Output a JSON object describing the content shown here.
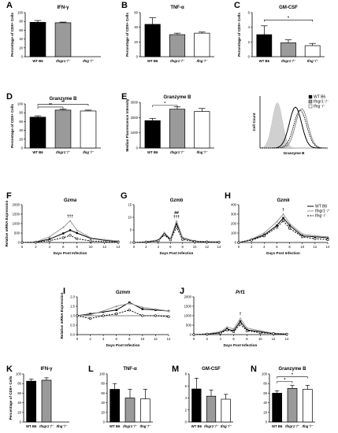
{
  "series_colors": {
    "WT B6": "#000000",
    "Ifngr1-/-": "#9a9a9a",
    "Ifng-/-": "#ffffff"
  },
  "bar_categories": [
    "WT B6",
    "Ifngr1⁻/⁻",
    "Ifng⁻/⁻"
  ],
  "chart_data": [
    {
      "panel": "A",
      "type": "bar",
      "title": "IFN-γ",
      "ylabel": "Percentage of CD8+ Cells",
      "categories": [
        "WT B6",
        "Ifngr1-/-",
        "Ifng-/-"
      ],
      "values": [
        78,
        77,
        0
      ],
      "errors": [
        4,
        1.5,
        0
      ],
      "ylim": [
        0,
        100
      ],
      "yticks": [
        "0",
        "20",
        "40",
        "60",
        "80",
        "100"
      ],
      "significance": []
    },
    {
      "panel": "B",
      "type": "bar",
      "title": "TNF-α",
      "ylabel": "Percentage of CD8+ Cells",
      "categories": [
        "WT B6",
        "Ifngr1-/-",
        "Ifng-/-"
      ],
      "values": [
        44,
        30,
        32
      ],
      "errors": [
        9,
        2,
        1.5
      ],
      "ylim": [
        0,
        60
      ],
      "yticks": [
        "0",
        "20",
        "40",
        "60"
      ],
      "significance": []
    },
    {
      "panel": "C",
      "type": "bar",
      "title": "GM-CSF",
      "ylabel": "Percentage of CD8+ Cells",
      "categories": [
        "WT B6",
        "Ifngr1-/-",
        "Ifng-/-"
      ],
      "values": [
        3.0,
        1.9,
        1.5
      ],
      "errors": [
        1.2,
        0.4,
        0.3
      ],
      "ylim": [
        0,
        6
      ],
      "yticks": [
        "0",
        "2",
        "4",
        "6"
      ],
      "significance": [
        {
          "from": 0,
          "to": 2,
          "label": "*",
          "level": 5.0
        }
      ]
    },
    {
      "panel": "D",
      "type": "bar",
      "title": "Granzyme B",
      "ylabel": "Percentage of CD8+ Cells",
      "categories": [
        "WT B6",
        "Ifngr1-/-",
        "Ifng-/-"
      ],
      "values": [
        70,
        86,
        84
      ],
      "errors": [
        3,
        2,
        2
      ],
      "ylim": [
        0,
        100
      ],
      "yticks": [
        "0",
        "20",
        "40",
        "60",
        "80",
        "100"
      ],
      "significance": [
        {
          "from": 0,
          "to": 1,
          "label": "**",
          "level": 93
        },
        {
          "from": 0,
          "to": 2,
          "label": "**",
          "level": 99
        }
      ]
    },
    {
      "panel": "E",
      "type": "bar",
      "title": "Granzyme B",
      "ylabel": "Median Fluorescence Intensity",
      "categories": [
        "WT B6",
        "Ifngr1-/-",
        "Ifng-/-"
      ],
      "values": [
        1800,
        2550,
        2400
      ],
      "errors": [
        150,
        150,
        200
      ],
      "ylim": [
        0,
        3000
      ],
      "yticks": [
        "0",
        "1000",
        "2000",
        "3000"
      ],
      "significance": [
        {
          "from": 0,
          "to": 1,
          "label": "*",
          "level": 2800
        }
      ]
    },
    {
      "panel": "E-histogram",
      "type": "line",
      "xlabel": "Granzyme B",
      "ylabel": "Cell Count",
      "legend": [
        "WT B6",
        "Ifngr1⁻/⁻",
        "Ifng⁻/⁻"
      ]
    },
    {
      "panel": "F",
      "type": "line",
      "title": "Gzma",
      "ylabel": "Relative mRNA Expression",
      "xlabel": "Days Post Infection",
      "x": [
        0,
        2,
        4,
        6,
        7,
        8,
        10,
        12,
        14
      ],
      "ylim": [
        0,
        2000
      ],
      "yticks": [
        "0",
        "500",
        "1000",
        "1500",
        "2000"
      ],
      "xticks": [
        "0",
        "2",
        "4",
        "6",
        "8",
        "10",
        "12",
        "14"
      ],
      "annotation": "†††",
      "series": [
        {
          "name": "WT B6",
          "values": [
            0,
            20,
            180,
            480,
            650,
            500,
            220,
            120,
            50
          ]
        },
        {
          "name": "Ifngr1-/-",
          "values": [
            0,
            30,
            300,
            800,
            1150,
            650,
            250,
            150,
            80
          ]
        },
        {
          "name": "Ifng-/-",
          "values": [
            0,
            15,
            100,
            250,
            380,
            200,
            80,
            40,
            20
          ]
        }
      ]
    },
    {
      "panel": "G",
      "type": "line",
      "title": "Gzmb",
      "ylabel": "",
      "xlabel": "Days Post Infection",
      "x": [
        0,
        2,
        4,
        5,
        6,
        7,
        8,
        10,
        12,
        14
      ],
      "ylim": [
        0,
        15
      ],
      "yticks": [
        "0",
        "5",
        "10",
        "15"
      ],
      "xticks": [
        "0",
        "2",
        "4",
        "6",
        "8",
        "10",
        "12",
        "14"
      ],
      "annotation": "##\n†††",
      "series": [
        {
          "name": "WT B6",
          "values": [
            0,
            0.2,
            0.8,
            3.5,
            1.2,
            7.5,
            1.8,
            0.5,
            0.3,
            0.2
          ]
        },
        {
          "name": "Ifngr1-/-",
          "values": [
            0,
            0.3,
            1.0,
            4.0,
            1.5,
            8.5,
            2.0,
            0.6,
            0.3,
            0.2
          ]
        },
        {
          "name": "Ifng-/-",
          "values": [
            0,
            0.2,
            0.7,
            3.0,
            1.0,
            6.0,
            1.2,
            0.4,
            0.2,
            0.1
          ]
        }
      ]
    },
    {
      "panel": "H",
      "type": "line",
      "title": "Gzmk",
      "ylabel": "",
      "xlabel": "Days Post Infection",
      "x": [
        0,
        2,
        4,
        6,
        7,
        8,
        10,
        12,
        14
      ],
      "ylim": [
        0,
        400
      ],
      "yticks": [
        "0",
        "100",
        "200",
        "300",
        "400"
      ],
      "xticks": [
        "0",
        "2",
        "4",
        "6",
        "8",
        "10",
        "12",
        "14"
      ],
      "annotation": "†",
      "legend": [
        "WT B6",
        "Ifngr1⁻/⁻",
        "Ifng⁻/⁻"
      ],
      "series": [
        {
          "name": "WT B6",
          "values": [
            0,
            30,
            80,
            180,
            260,
            180,
            70,
            60,
            50
          ]
        },
        {
          "name": "Ifngr1-/-",
          "values": [
            0,
            35,
            100,
            220,
            300,
            200,
            90,
            70,
            60
          ]
        },
        {
          "name": "Ifng-/-",
          "values": [
            0,
            25,
            70,
            160,
            230,
            150,
            60,
            40,
            30
          ]
        }
      ]
    },
    {
      "panel": "I",
      "type": "line",
      "title": "Gzmm",
      "ylabel": "Relative mRNA Expression",
      "xlabel": "Days Post Infection",
      "x": [
        0,
        2,
        4,
        6,
        8,
        10,
        12,
        14
      ],
      "ylim": [
        0,
        2.0
      ],
      "yticks": [
        "0.0",
        "0.5",
        "1.0",
        "1.5",
        "2.0"
      ],
      "xticks": [
        "0",
        "2",
        "4",
        "6",
        "8",
        "10",
        "12",
        "14"
      ],
      "reference_line": 1.0,
      "series": [
        {
          "name": "WT B6",
          "values": [
            1.0,
            1.1,
            1.2,
            1.3,
            1.7,
            1.35,
            1.3,
            1.25
          ]
        },
        {
          "name": "Ifngr1-/-",
          "values": [
            1.0,
            1.05,
            1.25,
            1.5,
            1.65,
            1.45,
            1.35,
            1.25
          ]
        },
        {
          "name": "Ifng-/-",
          "values": [
            1.0,
            0.85,
            1.0,
            1.1,
            1.3,
            1.0,
            1.0,
            0.95
          ]
        }
      ]
    },
    {
      "panel": "J",
      "type": "line",
      "title": "Prf1",
      "ylabel": "",
      "xlabel": "Days Post Infection",
      "x": [
        0,
        2,
        4,
        5,
        6,
        7,
        8,
        10,
        12,
        14
      ],
      "ylim": [
        0,
        2000
      ],
      "yticks": [
        "0",
        "500",
        "1000",
        "1500",
        "2000"
      ],
      "xticks": [
        "0",
        "2",
        "4",
        "6",
        "8",
        "10",
        "12",
        "14"
      ],
      "annotation": "†",
      "series": [
        {
          "name": "WT B6",
          "values": [
            0,
            30,
            100,
            300,
            200,
            700,
            250,
            150,
            60,
            30
          ]
        },
        {
          "name": "Ifngr1-/-",
          "values": [
            0,
            40,
            150,
            400,
            300,
            850,
            350,
            200,
            80,
            40
          ]
        },
        {
          "name": "Ifng-/-",
          "values": [
            0,
            25,
            80,
            250,
            150,
            550,
            200,
            100,
            50,
            20
          ]
        }
      ]
    },
    {
      "panel": "K",
      "type": "bar",
      "title": "IFN-γ",
      "ylabel": "Percentage of CD8+ Cells",
      "categories": [
        "WT B6",
        "Ifngr1-/-",
        "Ifng-/-"
      ],
      "values": [
        85,
        87,
        0
      ],
      "errors": [
        4,
        5,
        0
      ],
      "ylim": [
        0,
        100
      ],
      "yticks": [
        "0",
        "20",
        "40",
        "60",
        "80",
        "100"
      ],
      "significance": []
    },
    {
      "panel": "L",
      "type": "bar",
      "title": "TNF-α",
      "categories": [
        "WT B6",
        "Ifngr1-/-",
        "Ifng-/-"
      ],
      "values": [
        68,
        50,
        48
      ],
      "errors": [
        12,
        18,
        20
      ],
      "ylim": [
        0,
        100
      ],
      "yticks": [
        "0",
        "20",
        "40",
        "60",
        "80",
        "100"
      ],
      "significance": []
    },
    {
      "panel": "M",
      "type": "bar",
      "title": "GM-CSF",
      "categories": [
        "WT B6",
        "Ifngr1-/-",
        "Ifng-/-"
      ],
      "values": [
        5.5,
        4.3,
        3.8
      ],
      "errors": [
        1.8,
        1.0,
        0.8
      ],
      "ylim": [
        0,
        8
      ],
      "yticks": [
        "0",
        "2",
        "4",
        "6",
        "8"
      ],
      "significance": []
    },
    {
      "panel": "N",
      "type": "bar",
      "title": "Granzyme B",
      "categories": [
        "WT B6",
        "Ifngr1-/-",
        "Ifng-/-"
      ],
      "values": [
        60,
        70,
        68
      ],
      "errors": [
        5,
        6,
        8
      ],
      "ylim": [
        0,
        100
      ],
      "yticks": [
        "0",
        "20",
        "40",
        "60",
        "80",
        "100"
      ],
      "significance": [
        {
          "from": 0,
          "to": 1,
          "label": "*",
          "level": 84
        },
        {
          "from": 0,
          "to": 2,
          "label": "*",
          "level": 94
        }
      ]
    }
  ]
}
